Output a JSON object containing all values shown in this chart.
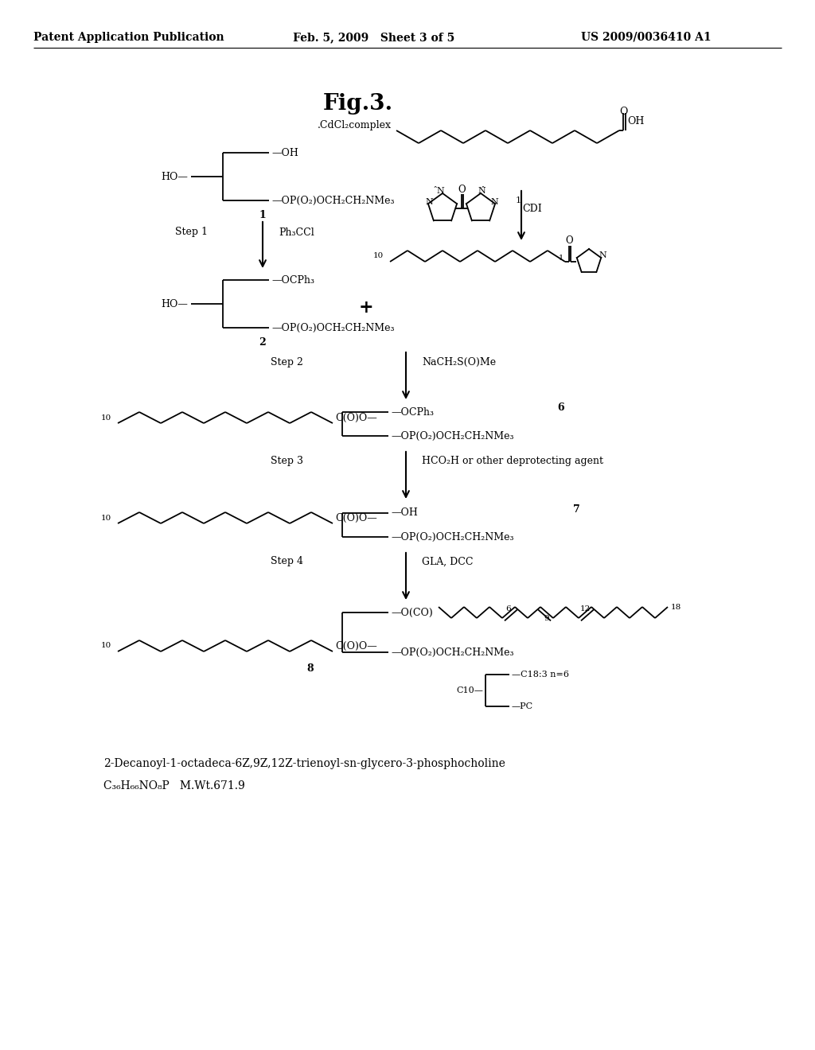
{
  "bg": "#ffffff",
  "header_left": "Patent Application Publication",
  "header_mid": "Feb. 5, 2009   Sheet 3 of 5",
  "header_right": "US 2009/0036410 A1",
  "fig_title": "Fig.3.",
  "cdcl2": ".CdCl₂complex",
  "step1": "Step 1",
  "step1_reagent": "Ph₃CCl",
  "step2": "Step 2",
  "step2_reagent": "NaCH₂S(O)Me",
  "step3": "Step 3",
  "step3_reagent": "HCO₂H or other deprotecting agent",
  "step4": "Step 4",
  "step4_reagent": "GLA, DCC",
  "CDI": "CDI",
  "CDI_num": "1",
  "OH": "—OH",
  "HO": "HO—",
  "PC_chain": "—OP(O₂)OCH₂CH₂NMe₃",
  "OCPh3": "—OCPh₃",
  "COO": "C(O)O—",
  "OCO": "—O(CO)",
  "plus": "+",
  "n10": "10",
  "n1": "1",
  "n6": "6",
  "n9": "9",
  "n12": "12",
  "n18": "18",
  "comp1": "1",
  "comp2": "2",
  "comp6": "6",
  "comp7": "7",
  "comp8": "8",
  "C18_label": "—C18:3 n=6",
  "C10_label": "C10—",
  "PC_label": "—PC",
  "name": "2-Decanoyl-1-octadeca-6Z,9Z,12Z-trienoyl-sn-glycero-3-phosphocholine",
  "formula": "C₃₆H₆₆NO₈P   M.Wt.671.9"
}
